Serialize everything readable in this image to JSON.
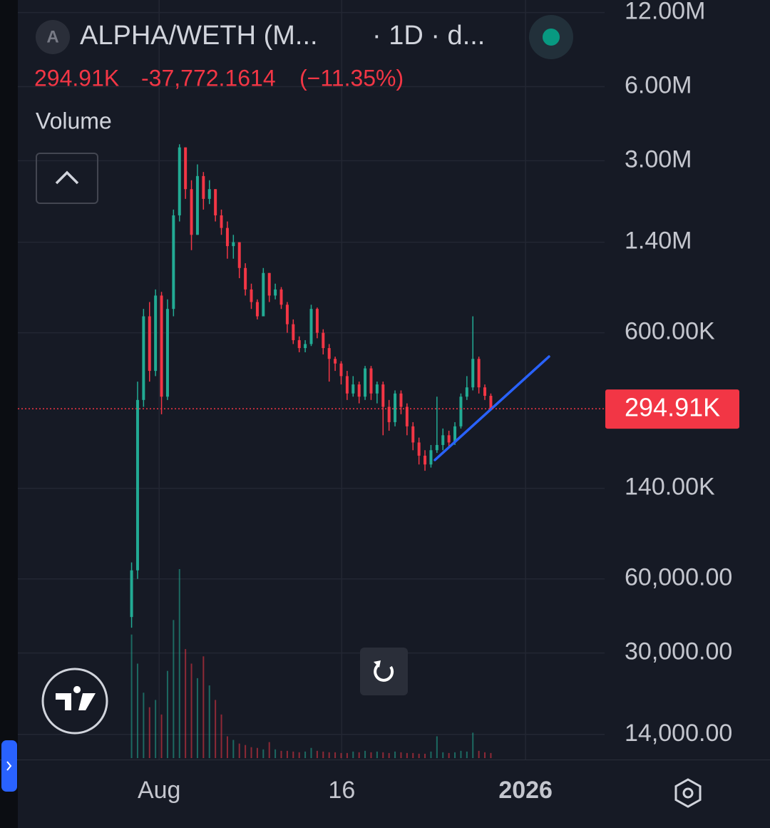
{
  "chart_data": {
    "type": "candlestick",
    "symbol_icon": "A",
    "title": "ALPHA/WETH (M...",
    "subtitle": "· 1D · d...",
    "last": {
      "value": 294910,
      "label": "294.91K"
    },
    "change": {
      "value": -37772.1614,
      "label": "-37,772.1614"
    },
    "change_pct": {
      "value": -11.35,
      "label": "(−11.35%)"
    },
    "volume_label": "Volume",
    "price_line": {
      "value": 294910,
      "label": "294.91K",
      "color": "#f23645"
    },
    "log_scale": true,
    "grid": true,
    "up_color": "#22ab94",
    "down_color": "#f23645",
    "ylim": [
      11070,
      13500000
    ],
    "yticks": [
      {
        "value": 12000000,
        "label": "12.00M"
      },
      {
        "value": 6000000,
        "label": "6.00M"
      },
      {
        "value": 3000000,
        "label": "3.00M"
      },
      {
        "value": 1400000,
        "label": "1.40M"
      },
      {
        "value": 600000,
        "label": "600.00K"
      },
      {
        "value": 140000,
        "label": "140.00K"
      },
      {
        "value": 60000,
        "label": "60,000.00"
      },
      {
        "value": 30000,
        "label": "30,000.00"
      },
      {
        "value": 14000,
        "label": "14,000.00"
      }
    ],
    "xlim": [
      -19,
      79
    ],
    "xticks": [
      {
        "value": 4.6,
        "label": "Aug"
      },
      {
        "value": 35.1,
        "label": "16"
      },
      {
        "value": 65.8,
        "label": "2026"
      }
    ],
    "open": [
      42000,
      65000,
      320000,
      700000,
      420000,
      850000,
      330000,
      750000,
      1800000,
      3400000,
      2300000,
      1500000,
      2600000,
      2100000,
      2300000,
      1800000,
      1600000,
      1350000,
      1400000,
      1100000,
      900000,
      800000,
      700000,
      1050000,
      850000,
      900000,
      780000,
      650000,
      560000,
      520000,
      540000,
      750000,
      600000,
      520000,
      470000,
      450000,
      400000,
      340000,
      370000,
      330000,
      430000,
      340000,
      370000,
      300000,
      260000,
      340000,
      300000,
      250000,
      215000,
      190000,
      175000,
      200000,
      210000,
      230000,
      215000,
      250000,
      330000,
      360000,
      470000,
      360000,
      332682
    ],
    "high": [
      70000,
      380000,
      750000,
      800000,
      900000,
      880000,
      820000,
      1900000,
      3500000,
      3400000,
      2500000,
      2900000,
      2700000,
      2500000,
      2300000,
      1900000,
      1700000,
      1500000,
      1400000,
      1150000,
      950000,
      820000,
      1100000,
      1050000,
      950000,
      920000,
      800000,
      680000,
      580000,
      560000,
      780000,
      760000,
      620000,
      540000,
      480000,
      460000,
      420000,
      400000,
      380000,
      440000,
      440000,
      380000,
      380000,
      320000,
      350000,
      350000,
      310000,
      260000,
      225000,
      200000,
      210000,
      330000,
      245000,
      240000,
      260000,
      340000,
      400000,
      700000,
      480000,
      370000,
      340000
    ],
    "low": [
      38000,
      60000,
      300000,
      380000,
      400000,
      280000,
      320000,
      700000,
      1700000,
      2100000,
      1300000,
      1500000,
      1900000,
      2000000,
      1700000,
      1500000,
      1200000,
      1200000,
      1000000,
      850000,
      750000,
      680000,
      700000,
      800000,
      820000,
      750000,
      600000,
      540000,
      500000,
      500000,
      530000,
      570000,
      490000,
      380000,
      420000,
      370000,
      320000,
      330000,
      310000,
      320000,
      320000,
      310000,
      230000,
      240000,
      250000,
      280000,
      230000,
      200000,
      175000,
      165000,
      170000,
      195000,
      200000,
      205000,
      210000,
      245000,
      320000,
      350000,
      340000,
      320000,
      290000
    ],
    "close": [
      65000,
      320000,
      700000,
      420000,
      850000,
      330000,
      750000,
      1800000,
      3400000,
      2300000,
      1500000,
      2600000,
      2100000,
      2300000,
      1800000,
      1600000,
      1350000,
      1400000,
      1100000,
      900000,
      800000,
      700000,
      1050000,
      850000,
      900000,
      780000,
      650000,
      560000,
      520000,
      540000,
      750000,
      600000,
      520000,
      470000,
      450000,
      400000,
      340000,
      370000,
      330000,
      430000,
      340000,
      370000,
      300000,
      260000,
      340000,
      300000,
      250000,
      215000,
      190000,
      175000,
      200000,
      210000,
      230000,
      215000,
      250000,
      330000,
      360000,
      470000,
      360000,
      332682,
      294910
    ],
    "volume": [
      170,
      130,
      90,
      70,
      80,
      60,
      120,
      190,
      260,
      150,
      130,
      110,
      140,
      100,
      80,
      60,
      30,
      25,
      20,
      18,
      15,
      14,
      12,
      22,
      12,
      10,
      10,
      9,
      8,
      9,
      14,
      10,
      9,
      8,
      8,
      7,
      7,
      9,
      8,
      10,
      8,
      9,
      8,
      7,
      9,
      8,
      7,
      7,
      6,
      6,
      9,
      30,
      8,
      7,
      8,
      10,
      9,
      35,
      10,
      8,
      7
    ]
  }
}
